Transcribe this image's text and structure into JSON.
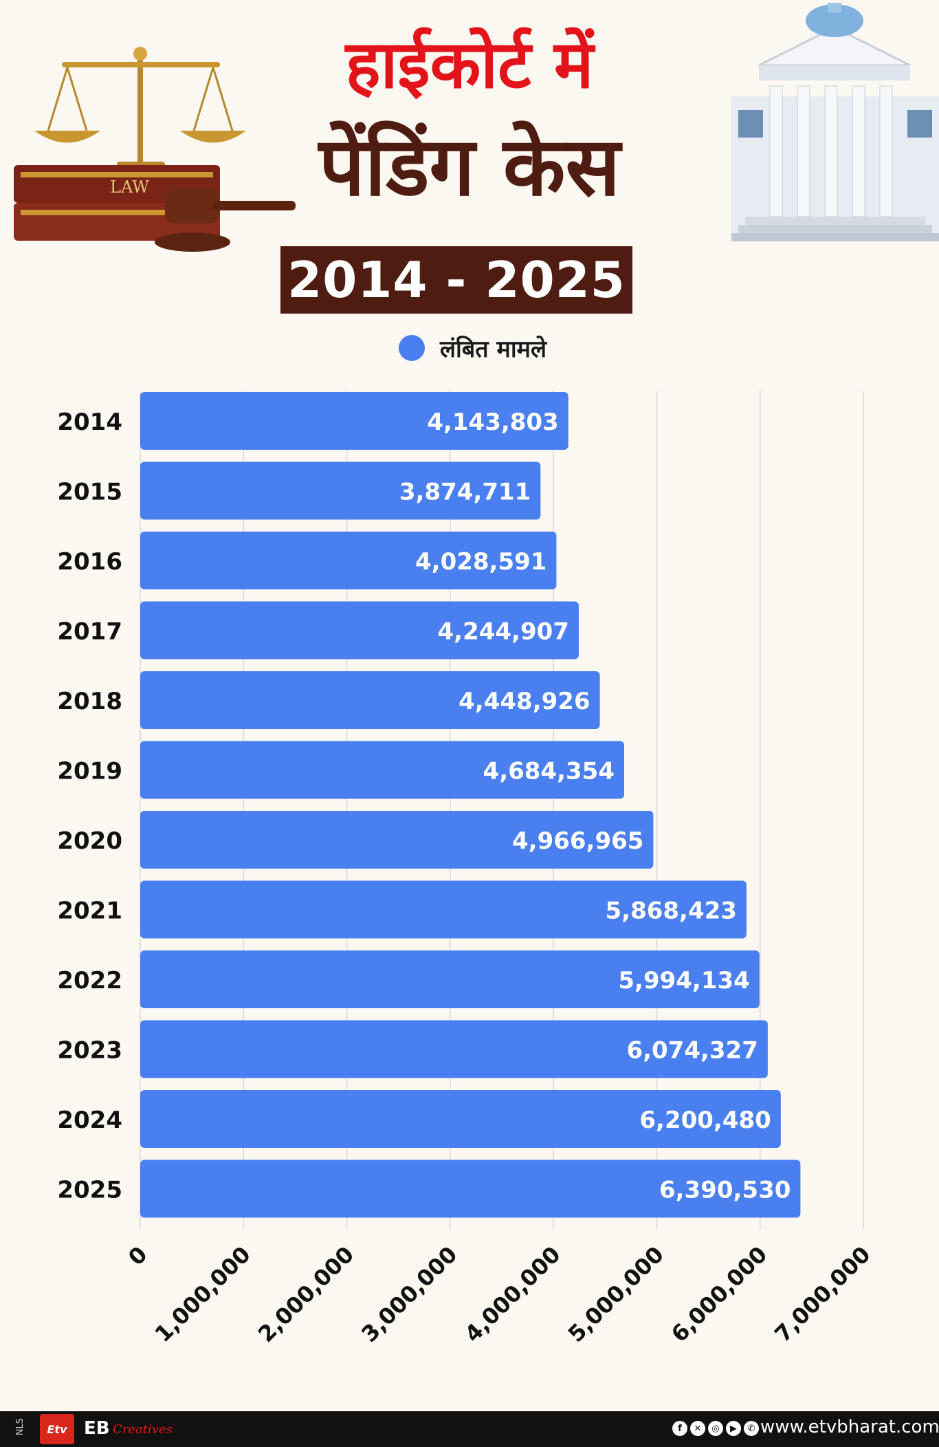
{
  "header": {
    "title_line1": "हाईकोर्ट में",
    "title_line2": "पेंडिंग केस",
    "years": "2014 - 2025",
    "book_label": "LAW"
  },
  "colors": {
    "bar": "#4a7ff0",
    "title_red": "#e2141a",
    "title_brown": "#4f1c12",
    "background": "#fbf8f1"
  },
  "chart_data": {
    "type": "bar",
    "orientation": "horizontal",
    "categories": [
      "2014",
      "2015",
      "2016",
      "2017",
      "2018",
      "2019",
      "2020",
      "2021",
      "2022",
      "2023",
      "2024",
      "2025"
    ],
    "series": [
      {
        "name": "लंबित मामले",
        "values": [
          4143803,
          3874711,
          4028591,
          4244907,
          4448926,
          4684354,
          4966965,
          5868423,
          5994134,
          6074327,
          6200480,
          6390530
        ]
      }
    ],
    "value_labels": [
      "4,143,803",
      "3,874,711",
      "4,028,591",
      "4,244,907",
      "4,448,926",
      "4,684,354",
      "4,966,965",
      "5,868,423",
      "5,994,134",
      "6,074,327",
      "6,200,480",
      "6,390,530"
    ],
    "xlim": [
      0,
      7000000
    ],
    "xticks": [
      0,
      1000000,
      2000000,
      3000000,
      4000000,
      5000000,
      6000000,
      7000000
    ],
    "xtick_labels": [
      "0",
      "1,000,000",
      "2,000,000",
      "3,000,000",
      "4,000,000",
      "5,000,000",
      "6,000,000",
      "7,000,000"
    ],
    "grid": true,
    "legend": "top-center"
  },
  "footer": {
    "nls": "NLS",
    "logo": "Etv",
    "eb": "EB",
    "creatives": "Creatives",
    "social_icons": [
      "facebook-icon",
      "x-icon",
      "instagram-icon",
      "youtube-icon",
      "whatsapp-icon"
    ],
    "url": "www.etvbharat.com"
  }
}
